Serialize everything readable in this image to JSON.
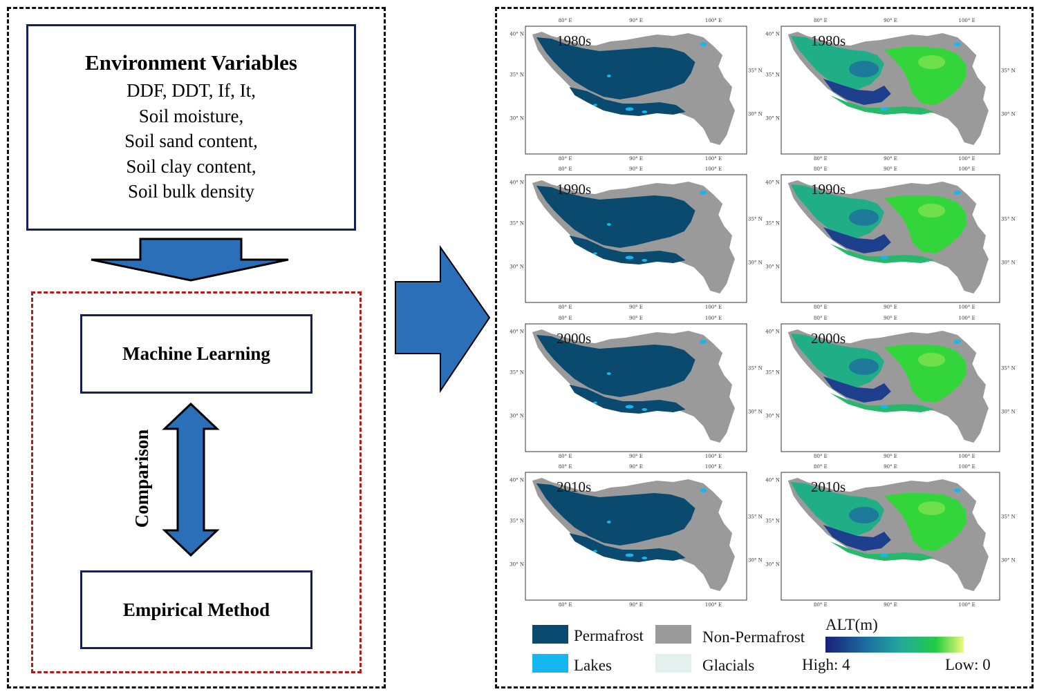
{
  "left_panel": {
    "env_box": {
      "title": "Environment Variables",
      "lines": [
        "DDF, DDT, If, It,",
        "Soil moisture,",
        "Soil sand content,",
        "Soil clay content,",
        "Soil bulk density"
      ]
    },
    "method_1": "Machine Learning",
    "method_2": "Empirical Method",
    "comparison_label": "Comparison"
  },
  "maps": {
    "decades": [
      "1980s",
      "1990s",
      "2000s",
      "2010s"
    ],
    "lon_ticks": [
      "80° E",
      "90° E",
      "100° E"
    ],
    "lat_ticks": [
      "40° N",
      "35° N",
      "30° N"
    ]
  },
  "legend": {
    "permafrost": "Permafrost",
    "non_permafrost": "Non-Permafrost",
    "lakes": "Lakes",
    "glacials": "Glacials",
    "alt_title": "ALT(m)",
    "alt_high": "High: 4",
    "alt_low": "Low: 0"
  },
  "colors": {
    "permafrost": "#0b4a6f",
    "non_permafrost": "#9a9a9a",
    "lakes": "#16b7f0",
    "glacials": "#e3f1ee",
    "arrow_blue": "#2a6fb8",
    "alt_gradient": [
      "#1b1f7a",
      "#1b6fa0",
      "#22a89a",
      "#22cc44",
      "#f0f878"
    ]
  }
}
